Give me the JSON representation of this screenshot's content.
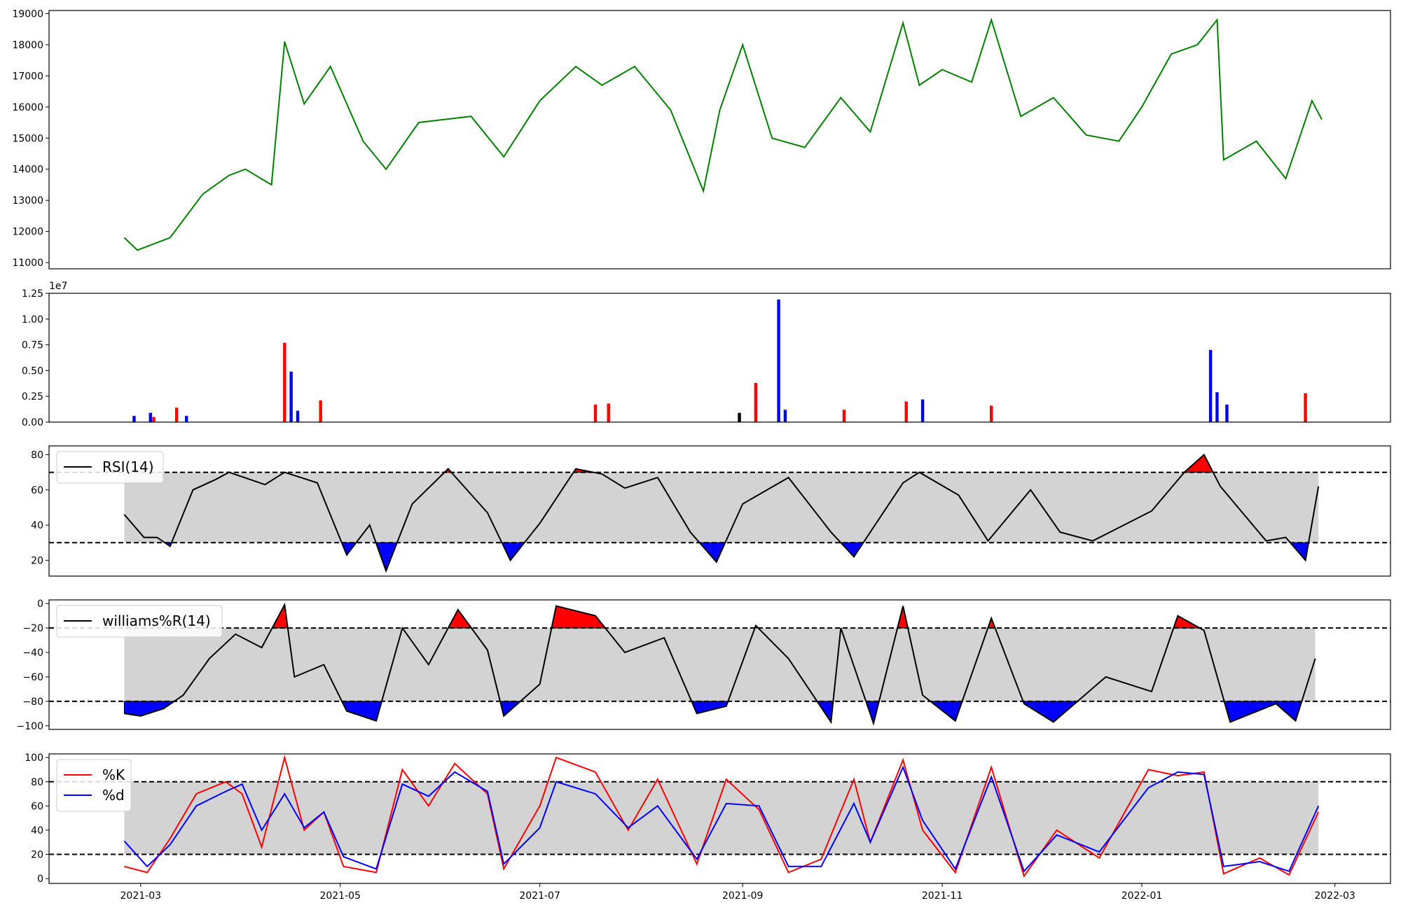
{
  "chart_data": [
    {
      "type": "line",
      "x_ticks": [
        "2021-03",
        "2021-05",
        "2021-07",
        "2021-09",
        "2021-11",
        "2022-01",
        "2022-03"
      ],
      "ylim": [
        10800,
        19100
      ],
      "y_ticks": [
        "11000",
        "12000",
        "13000",
        "14000",
        "15000",
        "16000",
        "17000",
        "18000",
        "19000"
      ],
      "y_tick_values": [
        11000,
        12000,
        13000,
        14000,
        15000,
        15999,
        17000,
        18000,
        19000
      ],
      "series": [
        {
          "color": "#008000",
          "x": [
            "2021-02-24",
            "2021-02-28",
            "2021-03-10",
            "2021-03-20",
            "2021-03-28",
            "2021-04-02",
            "2021-04-10",
            "2021-04-14",
            "2021-04-20",
            "2021-04-28",
            "2021-05-08",
            "2021-05-15",
            "2021-05-25",
            "2021-06-10",
            "2021-06-20",
            "2021-07-01",
            "2021-07-12",
            "2021-07-20",
            "2021-07-30",
            "2021-08-10",
            "2021-08-20",
            "2021-08-25",
            "2021-09-01",
            "2021-09-10",
            "2021-09-20",
            "2021-10-01",
            "2021-10-10",
            "2021-10-20",
            "2021-10-25",
            "2021-11-01",
            "2021-11-10",
            "2021-11-16",
            "2021-11-25",
            "2021-12-05",
            "2021-12-15",
            "2021-12-25",
            "2022-01-01",
            "2022-01-10",
            "2022-01-18",
            "2022-01-24",
            "2022-01-26",
            "2022-02-05",
            "2022-02-14",
            "2022-02-22",
            "2022-02-25"
          ],
          "y": [
            11800,
            11400,
            11800,
            13200,
            13800,
            14000,
            13500,
            18100,
            16100,
            17300,
            14900,
            14000,
            15500,
            15700,
            14400,
            16200,
            17300,
            16700,
            17300,
            15900,
            13300,
            15900,
            18000,
            15000,
            14700,
            16300,
            15200,
            18700,
            16700,
            17200,
            16800,
            18800,
            15700,
            16300,
            15100,
            14900,
            16000,
            17700,
            18000,
            18800,
            14300,
            14900,
            13700,
            16200,
            15600
          ]
        }
      ]
    },
    {
      "type": "bar",
      "x_ticks": [
        "2021-03",
        "2021-05",
        "2021-07",
        "2021-09",
        "2021-11",
        "2022-01",
        "2022-03"
      ],
      "offset_label": "1e7",
      "ylim": [
        0,
        1.25
      ],
      "y_ticks": [
        "0.00",
        "0.25",
        "0.50",
        "0.75",
        "1.00",
        "1.25"
      ],
      "y_tick_values": [
        0,
        0.25,
        0.5,
        0.75,
        1.0,
        1.25
      ],
      "colors": [
        "#ff0000",
        "#0000ff",
        "#000000"
      ],
      "bars": [
        {
          "date": "2021-03-05",
          "value": 0.05,
          "color": "#ff0000"
        },
        {
          "date": "2021-03-12",
          "value": 0.14,
          "color": "#ff0000"
        },
        {
          "date": "2021-03-15",
          "value": 0.06,
          "color": "#0000ff"
        },
        {
          "date": "2021-02-27",
          "value": 0.06,
          "color": "#0000ff"
        },
        {
          "date": "2021-03-04",
          "value": 0.09,
          "color": "#0000ff"
        },
        {
          "date": "2021-04-14",
          "value": 0.77,
          "color": "#ff0000"
        },
        {
          "date": "2021-04-16",
          "value": 0.49,
          "color": "#0000ff"
        },
        {
          "date": "2021-04-18",
          "value": 0.11,
          "color": "#0000ff"
        },
        {
          "date": "2021-04-25",
          "value": 0.21,
          "color": "#ff0000"
        },
        {
          "date": "2021-07-18",
          "value": 0.17,
          "color": "#ff0000"
        },
        {
          "date": "2021-07-22",
          "value": 0.18,
          "color": "#ff0000"
        },
        {
          "date": "2021-08-31",
          "value": 0.09,
          "color": "#000000"
        },
        {
          "date": "2021-09-05",
          "value": 0.38,
          "color": "#ff0000"
        },
        {
          "date": "2021-09-12",
          "value": 1.19,
          "color": "#0000ff"
        },
        {
          "date": "2021-09-14",
          "value": 0.12,
          "color": "#0000ff"
        },
        {
          "date": "2021-10-02",
          "value": 0.12,
          "color": "#ff0000"
        },
        {
          "date": "2021-10-21",
          "value": 0.2,
          "color": "#ff0000"
        },
        {
          "date": "2021-10-26",
          "value": 0.22,
          "color": "#0000ff"
        },
        {
          "date": "2021-11-16",
          "value": 0.16,
          "color": "#ff0000"
        },
        {
          "date": "2022-01-22",
          "value": 0.7,
          "color": "#0000ff"
        },
        {
          "date": "2022-01-24",
          "value": 0.29,
          "color": "#0000ff"
        },
        {
          "date": "2022-01-27",
          "value": 0.17,
          "color": "#0000ff"
        },
        {
          "date": "2022-02-20",
          "value": 0.28,
          "color": "#ff0000"
        }
      ]
    },
    {
      "type": "line",
      "x_ticks": [
        "2021-03",
        "2021-05",
        "2021-07",
        "2021-09",
        "2021-11",
        "2022-01",
        "2022-03"
      ],
      "ylim": [
        11,
        85
      ],
      "y_ticks": [
        "20",
        "40",
        "60",
        "80"
      ],
      "y_tick_values": [
        20,
        40,
        60,
        80
      ],
      "thresholds": [
        70,
        30
      ],
      "band": [
        30,
        70
      ],
      "legend": [
        "RSI(14)"
      ],
      "series": [
        {
          "name": "RSI(14)",
          "color": "#000000",
          "x": [
            "2021-02-24",
            "2021-03-02",
            "2021-03-06",
            "2021-03-10",
            "2021-03-17",
            "2021-03-24",
            "2021-03-28",
            "2021-04-08",
            "2021-04-14",
            "2021-04-24",
            "2021-05-03",
            "2021-05-10",
            "2021-05-15",
            "2021-05-23",
            "2021-06-03",
            "2021-06-15",
            "2021-06-22",
            "2021-07-01",
            "2021-07-12",
            "2021-07-20",
            "2021-07-27",
            "2021-08-06",
            "2021-08-16",
            "2021-08-24",
            "2021-09-01",
            "2021-09-15",
            "2021-09-28",
            "2021-10-05",
            "2021-10-20",
            "2021-10-25",
            "2021-11-06",
            "2021-11-15",
            "2021-11-28",
            "2021-12-07",
            "2021-12-17",
            "2022-01-04",
            "2022-01-14",
            "2022-01-20",
            "2022-01-25",
            "2022-02-08",
            "2022-02-14",
            "2022-02-20",
            "2022-02-24"
          ],
          "y": [
            46,
            33,
            33,
            28,
            60,
            66,
            70,
            63,
            70,
            64,
            23,
            40,
            14,
            52,
            72,
            47,
            20,
            41,
            72,
            69,
            61,
            67,
            36,
            19,
            52,
            67,
            36,
            22,
            64,
            70,
            57,
            31,
            60,
            36,
            31,
            48,
            70,
            80,
            62,
            31,
            33,
            20,
            62
          ]
        }
      ]
    },
    {
      "type": "line",
      "x_ticks": [
        "2021-03",
        "2021-05",
        "2021-07",
        "2021-09",
        "2021-11",
        "2022-01",
        "2022-03"
      ],
      "ylim": [
        -103,
        3
      ],
      "y_ticks": [
        "0",
        "−20",
        "−40",
        "−60",
        "−80",
        "−100"
      ],
      "y_tick_values": [
        0,
        -20,
        -40,
        -60,
        -80,
        -100
      ],
      "thresholds": [
        -20,
        -80
      ],
      "band": [
        -80,
        -20
      ],
      "legend": [
        "williams%R(14)"
      ],
      "series": [
        {
          "name": "williams%R(14)",
          "color": "#000000",
          "x": [
            "2021-02-24",
            "2021-03-01",
            "2021-03-08",
            "2021-03-14",
            "2021-03-22",
            "2021-03-30",
            "2021-04-07",
            "2021-04-14",
            "2021-04-17",
            "2021-04-26",
            "2021-05-03",
            "2021-05-12",
            "2021-05-20",
            "2021-05-28",
            "2021-06-06",
            "2021-06-15",
            "2021-06-20",
            "2021-07-01",
            "2021-07-06",
            "2021-07-18",
            "2021-07-27",
            "2021-08-08",
            "2021-08-18",
            "2021-08-27",
            "2021-09-05",
            "2021-09-15",
            "2021-09-28",
            "2021-10-01",
            "2021-10-11",
            "2021-10-20",
            "2021-10-26",
            "2021-11-05",
            "2021-11-16",
            "2021-11-26",
            "2021-12-05",
            "2021-12-21",
            "2022-01-04",
            "2022-01-12",
            "2022-01-20",
            "2022-01-28",
            "2022-02-11",
            "2022-02-17",
            "2022-02-23"
          ],
          "y": [
            -90,
            -92,
            -86,
            -75,
            -45,
            -25,
            -36,
            -1,
            -60,
            -50,
            -88,
            -96,
            -20,
            -50,
            -5,
            -38,
            -92,
            -66,
            -2,
            -10,
            -40,
            -28,
            -90,
            -84,
            -18,
            -45,
            -97,
            -20,
            -98,
            -2,
            -75,
            -96,
            -12,
            -82,
            -97,
            -60,
            -72,
            -10,
            -22,
            -97,
            -82,
            -96,
            -45
          ]
        }
      ]
    },
    {
      "type": "line",
      "x_ticks": [
        "2021-03",
        "2021-05",
        "2021-07",
        "2021-09",
        "2021-11",
        "2022-01",
        "2022-03"
      ],
      "ylim": [
        -4,
        103
      ],
      "y_ticks": [
        "0",
        "20",
        "40",
        "60",
        "80",
        "100"
      ],
      "y_tick_values": [
        0,
        20,
        40,
        60,
        80,
        100
      ],
      "thresholds": [
        80,
        20
      ],
      "band": [
        20,
        80
      ],
      "legend": [
        "%K",
        "%d"
      ],
      "series": [
        {
          "name": "%K",
          "color": "#ff0000",
          "x": [
            "2021-02-24",
            "2021-03-03",
            "2021-03-10",
            "2021-03-18",
            "2021-03-27",
            "2021-04-01",
            "2021-04-07",
            "2021-04-14",
            "2021-04-20",
            "2021-04-26",
            "2021-05-02",
            "2021-05-12",
            "2021-05-20",
            "2021-05-28",
            "2021-06-05",
            "2021-06-15",
            "2021-06-20",
            "2021-07-01",
            "2021-07-06",
            "2021-07-18",
            "2021-07-28",
            "2021-08-06",
            "2021-08-18",
            "2021-08-27",
            "2021-09-06",
            "2021-09-15",
            "2021-09-25",
            "2021-10-05",
            "2021-10-10",
            "2021-10-20",
            "2021-10-26",
            "2021-11-05",
            "2021-11-16",
            "2021-11-26",
            "2021-12-06",
            "2021-12-19",
            "2022-01-03",
            "2022-01-12",
            "2022-01-20",
            "2022-01-26",
            "2022-02-06",
            "2022-02-15",
            "2022-02-24"
          ],
          "y": [
            10,
            5,
            33,
            70,
            80,
            70,
            26,
            100,
            40,
            55,
            10,
            5,
            90,
            60,
            95,
            70,
            8,
            60,
            100,
            88,
            40,
            82,
            12,
            82,
            57,
            5,
            16,
            82,
            30,
            98,
            40,
            5,
            92,
            2,
            40,
            17,
            90,
            85,
            88,
            4,
            17,
            3,
            55
          ]
        },
        {
          "name": "%d",
          "color": "#0000ff",
          "x": [
            "2021-02-24",
            "2021-03-03",
            "2021-03-10",
            "2021-03-18",
            "2021-03-27",
            "2021-04-01",
            "2021-04-07",
            "2021-04-14",
            "2021-04-20",
            "2021-04-26",
            "2021-05-02",
            "2021-05-12",
            "2021-05-20",
            "2021-05-28",
            "2021-06-05",
            "2021-06-15",
            "2021-06-20",
            "2021-07-01",
            "2021-07-06",
            "2021-07-18",
            "2021-07-28",
            "2021-08-06",
            "2021-08-18",
            "2021-08-27",
            "2021-09-06",
            "2021-09-15",
            "2021-09-25",
            "2021-10-05",
            "2021-10-10",
            "2021-10-20",
            "2021-10-26",
            "2021-11-05",
            "2021-11-16",
            "2021-11-26",
            "2021-12-06",
            "2021-12-19",
            "2022-01-03",
            "2022-01-12",
            "2022-01-20",
            "2022-01-26",
            "2022-02-06",
            "2022-02-15",
            "2022-02-24"
          ],
          "y": [
            31,
            10,
            28,
            60,
            72,
            78,
            40,
            70,
            42,
            55,
            18,
            8,
            78,
            68,
            88,
            72,
            12,
            42,
            80,
            70,
            42,
            60,
            16,
            62,
            60,
            10,
            10,
            62,
            30,
            92,
            48,
            8,
            84,
            6,
            36,
            22,
            75,
            88,
            86,
            10,
            14,
            6,
            60
          ]
        }
      ]
    }
  ]
}
